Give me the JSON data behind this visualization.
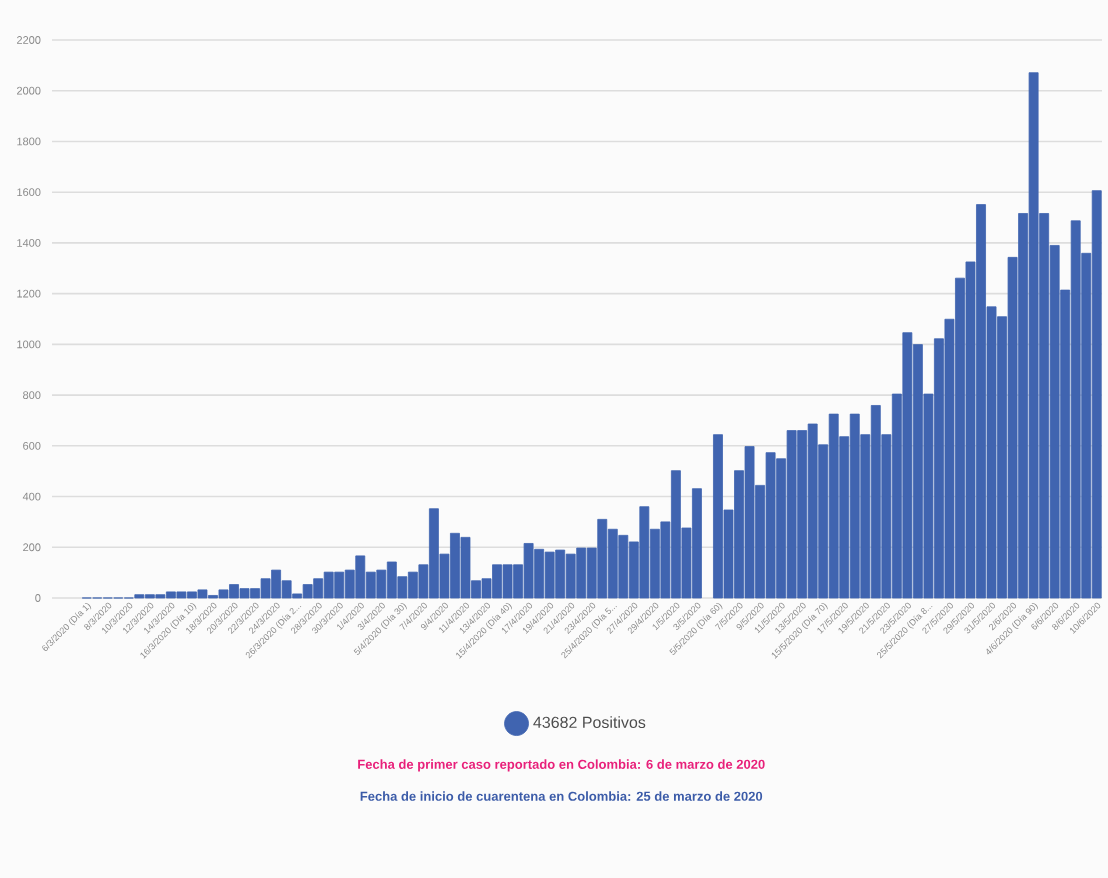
{
  "chart_data": {
    "type": "bar",
    "categories": [
      "6/3/2020 (Día 1)",
      null,
      "8/3/2020",
      null,
      "10/3/2020",
      null,
      "12/3/2020",
      null,
      "14/3/2020",
      null,
      "16/3/2020 (Día 10)",
      null,
      "18/3/2020",
      null,
      "20/3/2020",
      null,
      "22/3/2020",
      null,
      "24/3/2020",
      null,
      "26/3/2020 (Día 2...",
      null,
      "28/3/2020",
      null,
      "30/3/2020",
      null,
      "1/4/2020",
      null,
      "3/4/2020",
      null,
      "5/4/2020 (Día 30)",
      null,
      "7/4/2020",
      null,
      "9/4/2020",
      null,
      "11/4/2020",
      null,
      "13/4/2020",
      null,
      "15/4/2020 (Día 40)",
      null,
      "17/4/2020",
      null,
      "19/4/2020",
      null,
      "21/4/2020",
      null,
      "23/4/2020",
      null,
      "25/4/2020 (Día 5...",
      null,
      "27/4/2020",
      null,
      "29/4/2020",
      null,
      "1/5/2020",
      null,
      "3/5/2020",
      null,
      "5/5/2020 (Día 60)",
      null,
      "7/5/2020",
      null,
      "9/5/2020",
      null,
      "11/5/2020",
      null,
      "13/5/2020",
      null,
      "15/5/2020 (Día 70)",
      null,
      "17/5/2020",
      null,
      "19/5/2020",
      null,
      "21/5/2020",
      null,
      "23/5/2020",
      null,
      "25/5/2020 (Día 8...",
      null,
      "27/5/2020",
      null,
      "29/5/2020",
      null,
      "31/5/2020",
      null,
      "2/6/2020",
      null,
      "4/6/2020 (Día 90)",
      null,
      "6/6/2020",
      null,
      "8/6/2020",
      null,
      "10/6/2020"
    ],
    "series": [
      {
        "name": "43682 Positivos",
        "color": "#4064b0",
        "values": [
          0,
          0,
          0,
          0,
          0,
          13,
          13,
          13,
          24,
          24,
          24,
          32,
          10,
          32,
          53,
          37,
          37,
          76,
          110,
          68,
          16,
          53,
          76,
          102,
          102,
          110,
          166,
          102,
          110,
          142,
          84,
          102,
          131,
          352,
          173,
          255,
          239,
          68,
          76,
          131,
          131,
          131,
          215,
          192,
          181,
          189,
          173,
          197,
          197,
          310,
          271,
          247,
          221,
          360,
          271,
          300,
          502,
          276,
          431,
          null,
          644,
          347,
          502,
          597,
          444,
          573,
          549,
          660,
          660,
          686,
          604,
          725,
          636,
          725,
          644,
          759,
          644,
          804,
          1046,
          999,
          804,
          1022,
          1099,
          1261,
          1325,
          1551,
          1148,
          1109,
          1343,
          1516,
          2071,
          1516,
          1390,
          1214,
          1487,
          1359,
          1606
        ]
      }
    ],
    "ylim": [
      0,
      2200
    ],
    "yticks": [
      0,
      200,
      400,
      600,
      800,
      1000,
      1200,
      1400,
      1600,
      1800,
      2000,
      2200
    ],
    "grid": "y",
    "legend": "bottom",
    "annotations": [
      "Fecha de primer caso reportado en Colombia: 6 de marzo de 2020",
      "Fecha de inicio de cuarentena en Colombia: 25 de marzo de 2020"
    ]
  }
}
